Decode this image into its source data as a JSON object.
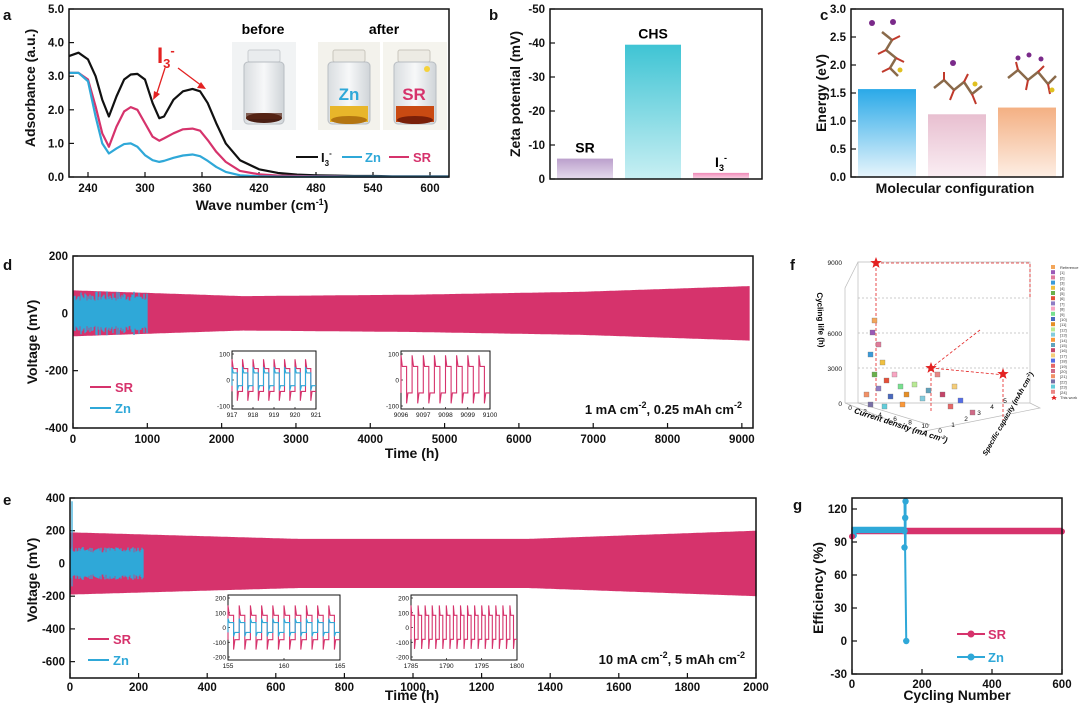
{
  "colors": {
    "sr": "#d6336c",
    "zn": "#2fa8d8",
    "i3": "#111111",
    "red": "#e32222",
    "cyan": "#56c9d9",
    "lilac": "#c7b0d4",
    "pink": "#f19ac2",
    "blue": "#3bb0e8",
    "rose": "#e6b3c3",
    "peach": "#f2b58f"
  },
  "panels": {
    "a": {
      "label": "a",
      "before": "before",
      "after": "after",
      "vial_zn": "Zn",
      "vial_sr": "SR",
      "annotation": "I",
      "annotation_sub": "3",
      "annotation_sup": "-"
    },
    "b": {
      "label": "b"
    },
    "c": {
      "label": "c"
    },
    "d": {
      "label": "d",
      "condition": "1 mA cm",
      "condition_sup1": "-2",
      "condition_mid": ", 0.25 mAh cm",
      "condition_sup2": "-2"
    },
    "e": {
      "label": "e",
      "condition": "10 mA cm",
      "condition_sup1": "-2",
      "condition_mid": ", 5 mAh cm",
      "condition_sup2": "-2"
    },
    "f": {
      "label": "f",
      "zlabel": "Cycling life (h)",
      "xlabel": "Current density (mA cm",
      "xlabel_sup": "-2",
      "xlabel_end": ")",
      "ylabel": "Specific capacity (mAh cm",
      "ylabel_sup": "-2",
      "ylabel_end": ")",
      "z_ticks": [
        "0",
        "3000",
        "6000",
        "9000"
      ],
      "x_ticks": [
        "0",
        "2",
        "4",
        "6",
        "8",
        "10"
      ],
      "y_ticks": [
        "0",
        "1",
        "2",
        "3",
        "4",
        "5"
      ],
      "legend": [
        "Reference",
        "[1]",
        "[2]",
        "[3]",
        "[4]",
        "[5]",
        "[6]",
        "[7]",
        "[8]",
        "[9]",
        "[10]",
        "[11]",
        "[12]",
        "[13]",
        "[14]",
        "[15]",
        "[16]",
        "[17]",
        "[18]",
        "[19]",
        "[20]",
        "[21]",
        "[22]",
        "[23]",
        "[24]",
        "This work"
      ]
    },
    "g": {
      "label": "g"
    }
  },
  "chart_data": [
    {
      "id": "a",
      "type": "line",
      "xlabel": "Wave number (cm",
      "xlabel_sup": "-1",
      "xlabel_end": ")",
      "ylabel": "Adsorbance (a.u.)",
      "xlim": [
        220,
        620
      ],
      "ylim": [
        0,
        5.0
      ],
      "xticks": [
        "240",
        "300",
        "360",
        "420",
        "480",
        "540",
        "600"
      ],
      "yticks": [
        "0.0",
        "1.0",
        "2.0",
        "3.0",
        "4.0",
        "5.0"
      ],
      "series": [
        {
          "name": "I3-",
          "legend": "I",
          "legend_sub": "3",
          "legend_sup": "-",
          "color": "#111111",
          "x": [
            220,
            230,
            240,
            248,
            255,
            262,
            270,
            278,
            285,
            292,
            300,
            308,
            315,
            320,
            330,
            340,
            350,
            358,
            366,
            375,
            385,
            400,
            420,
            440,
            460,
            480,
            500,
            520,
            540,
            560,
            580,
            600,
            620
          ],
          "y": [
            3.6,
            3.7,
            3.5,
            3.0,
            2.3,
            1.8,
            2.4,
            2.9,
            3.05,
            3.07,
            2.9,
            2.2,
            1.75,
            1.8,
            2.3,
            2.55,
            2.62,
            2.55,
            2.2,
            1.6,
            1.0,
            0.5,
            0.23,
            0.12,
            0.07,
            0.05,
            0.04,
            0.03,
            0.03,
            0.02,
            0.02,
            0.02,
            0.02
          ]
        },
        {
          "name": "SR",
          "legend": "SR",
          "color": "#d6336c",
          "x": [
            220,
            230,
            240,
            248,
            255,
            262,
            270,
            278,
            285,
            292,
            300,
            308,
            315,
            320,
            330,
            340,
            350,
            358,
            366,
            375,
            385,
            400,
            420,
            440,
            460,
            480,
            500,
            520,
            540,
            560,
            580,
            600,
            620
          ],
          "y": [
            3.1,
            3.1,
            2.9,
            2.1,
            1.3,
            0.9,
            1.5,
            1.95,
            2.08,
            2.0,
            1.6,
            1.2,
            1.08,
            1.15,
            1.3,
            1.42,
            1.44,
            1.38,
            1.1,
            0.75,
            0.45,
            0.18,
            0.08,
            0.04,
            0.03,
            0.02,
            0.02,
            0.01,
            0.01,
            0.01,
            0.01,
            0.01,
            0.01
          ]
        },
        {
          "name": "Zn",
          "legend": "Zn",
          "color": "#2fa8d8",
          "x": [
            220,
            230,
            240,
            248,
            255,
            262,
            270,
            278,
            285,
            292,
            300,
            308,
            315,
            320,
            330,
            340,
            350,
            358,
            366,
            375,
            385,
            400,
            420,
            440,
            460,
            480,
            500,
            520,
            540,
            560,
            580,
            600,
            620
          ],
          "y": [
            3.1,
            3.1,
            2.85,
            1.8,
            1.0,
            0.7,
            0.85,
            0.98,
            1.0,
            0.9,
            0.65,
            0.5,
            0.45,
            0.48,
            0.57,
            0.64,
            0.67,
            0.62,
            0.48,
            0.3,
            0.15,
            0.05,
            0.02,
            0.01,
            0.01,
            0.01,
            0.01,
            0.01,
            0.01,
            0.01,
            0.01,
            0.01,
            0.01
          ]
        }
      ]
    },
    {
      "id": "b",
      "type": "bar",
      "ylabel": "Zeta potential (mV)",
      "ylim": [
        0,
        -50
      ],
      "yticks": [
        "0",
        "-10",
        "-20",
        "-30",
        "-40",
        "-50"
      ],
      "categories": [
        "SR",
        "CHS",
        "I3-"
      ],
      "category_labels": [
        "SR",
        "CHS",
        "I"
      ],
      "label_sub": [
        "",
        "",
        "3"
      ],
      "label_sup": [
        "",
        "",
        "-"
      ],
      "values": [
        -6,
        -39.5,
        -1.8
      ]
    },
    {
      "id": "c",
      "type": "bar",
      "ylabel": "Energy (eV)",
      "xlabel": "Molecular configuration",
      "ylim": [
        0,
        3.0
      ],
      "yticks": [
        "0.0",
        "0.5",
        "1.0",
        "1.5",
        "2.0",
        "2.5",
        "3.0"
      ],
      "values": [
        1.57,
        1.12,
        1.24
      ]
    },
    {
      "id": "d",
      "type": "line",
      "xlabel": "Time (h)",
      "ylabel": "Voltage (mV)",
      "xlim": [
        0,
        9150
      ],
      "ylim": [
        -400,
        200
      ],
      "xticks": [
        "0",
        "1000",
        "2000",
        "3000",
        "4000",
        "5000",
        "6000",
        "7000",
        "8000",
        "9000"
      ],
      "yticks": [
        "-400",
        "-200",
        "0",
        "200"
      ],
      "series": [
        {
          "name": "SR",
          "legend": "SR",
          "end_h": 9100,
          "amplitude_mv": [
            80,
            60,
            65,
            75,
            95
          ]
        },
        {
          "name": "Zn",
          "legend": "Zn",
          "end_h": 1000,
          "amplitude_mv": [
            70
          ]
        }
      ],
      "insets": [
        {
          "xlim": [
            917,
            921
          ],
          "xticks": [
            "917",
            "918",
            "919",
            "920",
            "921"
          ],
          "ylim": [
            -100,
            100
          ],
          "yticks": [
            "-100",
            "0",
            "100"
          ]
        },
        {
          "xlim": [
            9096,
            9100
          ],
          "xticks": [
            "9096",
            "9097",
            "9098",
            "9099",
            "9100"
          ],
          "ylim": [
            -100,
            100
          ],
          "yticks": [
            "-100",
            "0",
            "100"
          ]
        }
      ]
    },
    {
      "id": "e",
      "type": "line",
      "xlabel": "Time (h)",
      "ylabel": "Voltage (mV)",
      "xlim": [
        0,
        2000
      ],
      "ylim": [
        -700,
        400
      ],
      "xticks": [
        "0",
        "200",
        "400",
        "600",
        "800",
        "1000",
        "1200",
        "1400",
        "1600",
        "1800",
        "2000"
      ],
      "yticks": [
        "-600",
        "-400",
        "-200",
        "0",
        "200",
        "400"
      ],
      "series": [
        {
          "name": "SR",
          "legend": "SR",
          "end_h": 2000,
          "amplitude_mv": [
            190,
            150,
            150,
            200
          ]
        },
        {
          "name": "Zn",
          "legend": "Zn",
          "end_h": 215,
          "amplitude_mv": [
            120
          ]
        }
      ],
      "insets": [
        {
          "xlim": [
            155,
            165
          ],
          "xticks": [
            "155",
            "160",
            "165"
          ],
          "ylim": [
            -200,
            200
          ],
          "yticks": [
            "-200",
            "-100",
            "0",
            "100",
            "200"
          ]
        },
        {
          "xlim": [
            1785,
            1800
          ],
          "xticks": [
            "1785",
            "1790",
            "1795",
            "1800"
          ],
          "ylim": [
            -200,
            200
          ],
          "yticks": [
            "-200",
            "-100",
            "0",
            "100",
            "200"
          ]
        }
      ]
    },
    {
      "id": "g",
      "type": "scatter",
      "xlabel": "Cycling Number",
      "ylabel": "Efficiency (%)",
      "xlim": [
        0,
        600
      ],
      "ylim": [
        -30,
        130
      ],
      "xticks": [
        "0",
        "200",
        "400",
        "600"
      ],
      "yticks": [
        "-30",
        "0",
        "30",
        "60",
        "90",
        "120"
      ],
      "series": [
        {
          "name": "SR",
          "legend": "SR",
          "points": [
            [
              0,
              95
            ],
            [
              600,
              99.5
            ]
          ],
          "level": 100
        },
        {
          "name": "Zn",
          "legend": "Zn",
          "points": [
            [
              5,
              96
            ],
            [
              150,
              85
            ],
            [
              150,
              100
            ],
            [
              152,
              112
            ],
            [
              153,
              127
            ],
            [
              155,
              0
            ]
          ],
          "level": 101
        }
      ]
    },
    {
      "id": "f",
      "type": "scatter3d",
      "points": [
        {
          "x": 0.5,
          "y": 0.5,
          "z": 9000,
          "mark": "star"
        },
        {
          "x": 10,
          "y": 5,
          "z": 2000,
          "mark": "star"
        },
        {
          "x": 5,
          "y": 1,
          "z": 2500,
          "mark": "star"
        }
      ]
    }
  ]
}
